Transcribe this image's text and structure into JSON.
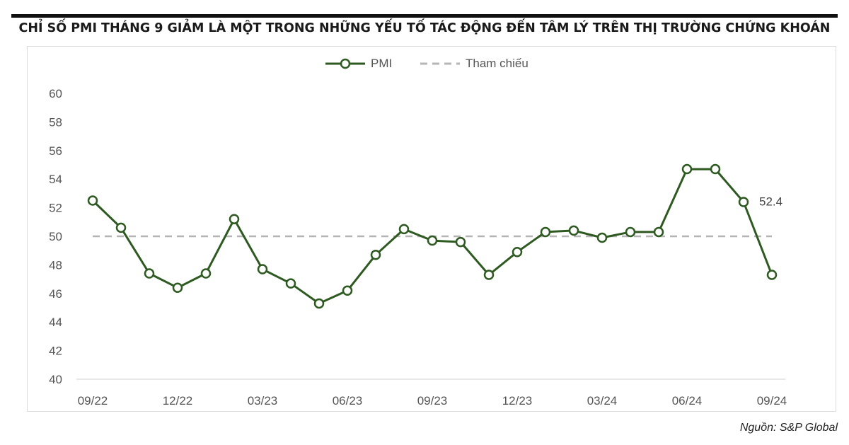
{
  "title": "CHỈ SỐ PMI THÁNG 9 GIẢM LÀ MỘT TRONG NHỮNG YẾU TỐ TÁC ĐỘNG ĐẾN TÂM LÝ TRÊN THỊ TRƯỜNG CHỨNG KHOÁN",
  "source": "Nguồn: S&P Global",
  "chart_data": {
    "type": "line",
    "title": "CHỈ SỐ PMI THÁNG 9 GIẢM LÀ MỘT TRONG NHỮNG YẾU TỐ TÁC ĐỘNG ĐẾN TÂM LÝ TRÊN THỊ TRƯỜNG CHỨNG KHOÁN",
    "xlabel": "",
    "ylabel": "",
    "ylim": [
      40,
      60
    ],
    "yticks": [
      40,
      42,
      44,
      46,
      48,
      50,
      52,
      54,
      56,
      58,
      60
    ],
    "x": [
      "09/22",
      "10/22",
      "11/22",
      "12/22",
      "01/23",
      "02/23",
      "03/23",
      "04/23",
      "05/23",
      "06/23",
      "07/23",
      "08/23",
      "09/23",
      "10/23",
      "11/23",
      "12/23",
      "01/24",
      "02/24",
      "03/24",
      "04/24",
      "05/24",
      "06/24",
      "07/24",
      "08/24",
      "09/24"
    ],
    "xtick_labels": [
      "09/22",
      "12/22",
      "03/23",
      "06/23",
      "09/23",
      "12/23",
      "03/24",
      "06/24",
      "09/24"
    ],
    "grid": false,
    "legend_position": "top-center",
    "series": [
      {
        "name": "PMI",
        "style": "solid-with-markers",
        "color": "#2e5a22",
        "values": [
          52.5,
          50.6,
          47.4,
          46.4,
          47.4,
          51.2,
          47.7,
          46.7,
          45.3,
          46.2,
          48.7,
          50.5,
          49.7,
          49.6,
          47.3,
          48.9,
          50.3,
          50.4,
          49.9,
          50.3,
          50.3,
          54.7,
          54.7,
          52.4,
          47.3
        ]
      },
      {
        "name": "Tham chiếu",
        "style": "dashed",
        "color": "#b5b5b5",
        "values": [
          50,
          50,
          50,
          50,
          50,
          50,
          50,
          50,
          50,
          50,
          50,
          50,
          50,
          50,
          50,
          50,
          50,
          50,
          50,
          50,
          50,
          50,
          50,
          50,
          50
        ]
      }
    ],
    "annotations": [
      {
        "x": "08/24",
        "label": "52.4"
      }
    ]
  }
}
